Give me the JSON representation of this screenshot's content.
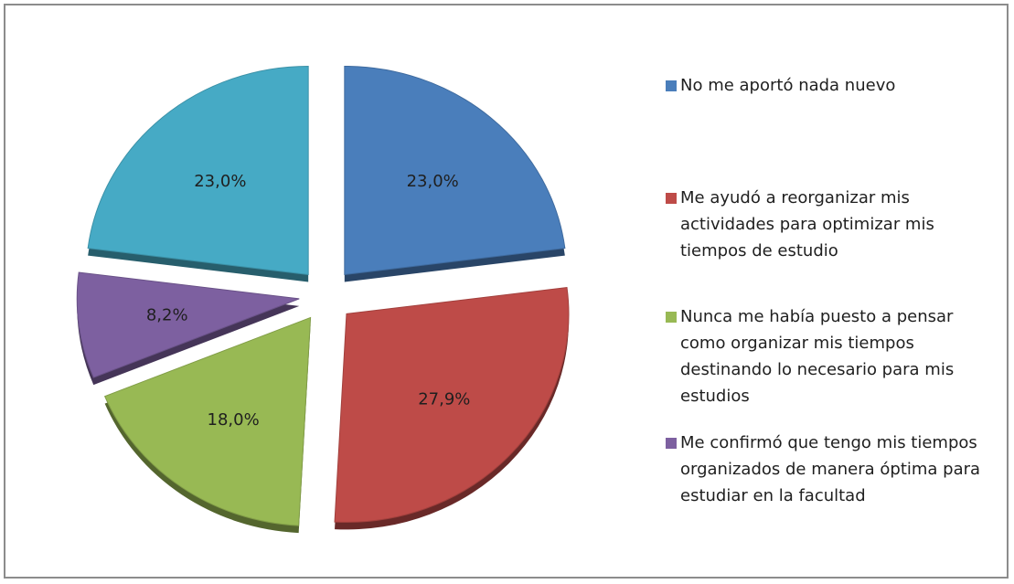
{
  "chart_data": {
    "type": "pie",
    "exploded": true,
    "style": "3d",
    "legend_position": "right",
    "slices": [
      {
        "label": "No me aportó nada nuevo",
        "value": 23.0,
        "display": "23,0%",
        "color": "#4a7ebb"
      },
      {
        "label": "Me ayudó a reorganizar mis actividades para optimizar mis tiempos de estudio",
        "value": 27.9,
        "display": "27,9%",
        "color": "#be4b48"
      },
      {
        "label": "Nunca me había puesto a pensar como organizar mis tiempos destinando lo necesario para mis estudios",
        "value": 18.0,
        "display": "18,0%",
        "color": "#98b954"
      },
      {
        "label": "Me confirmó que tengo mis tiempos organizados de manera óptima para estudiar en la facultad",
        "value": 8.2,
        "display": "8,2%",
        "color": "#7d60a0"
      },
      {
        "label": "",
        "value": 23.0,
        "display": "23,0%",
        "color": "#46aac5"
      }
    ],
    "legend": [
      {
        "text": "No me aportó nada nuevo",
        "color": "#4a7ebb"
      },
      {
        "text": "Me ayudó a reorganizar mis actividades para optimizar mis tiempos de estudio",
        "color": "#be4b48"
      },
      {
        "text": "Nunca me había puesto a pensar como organizar mis tiempos destinando lo necesario para mis estudios",
        "color": "#98b954"
      },
      {
        "text": "Me confirmó que tengo mis tiempos organizados de manera óptima para estudiar en la facultad",
        "color": "#7d60a0"
      }
    ]
  }
}
